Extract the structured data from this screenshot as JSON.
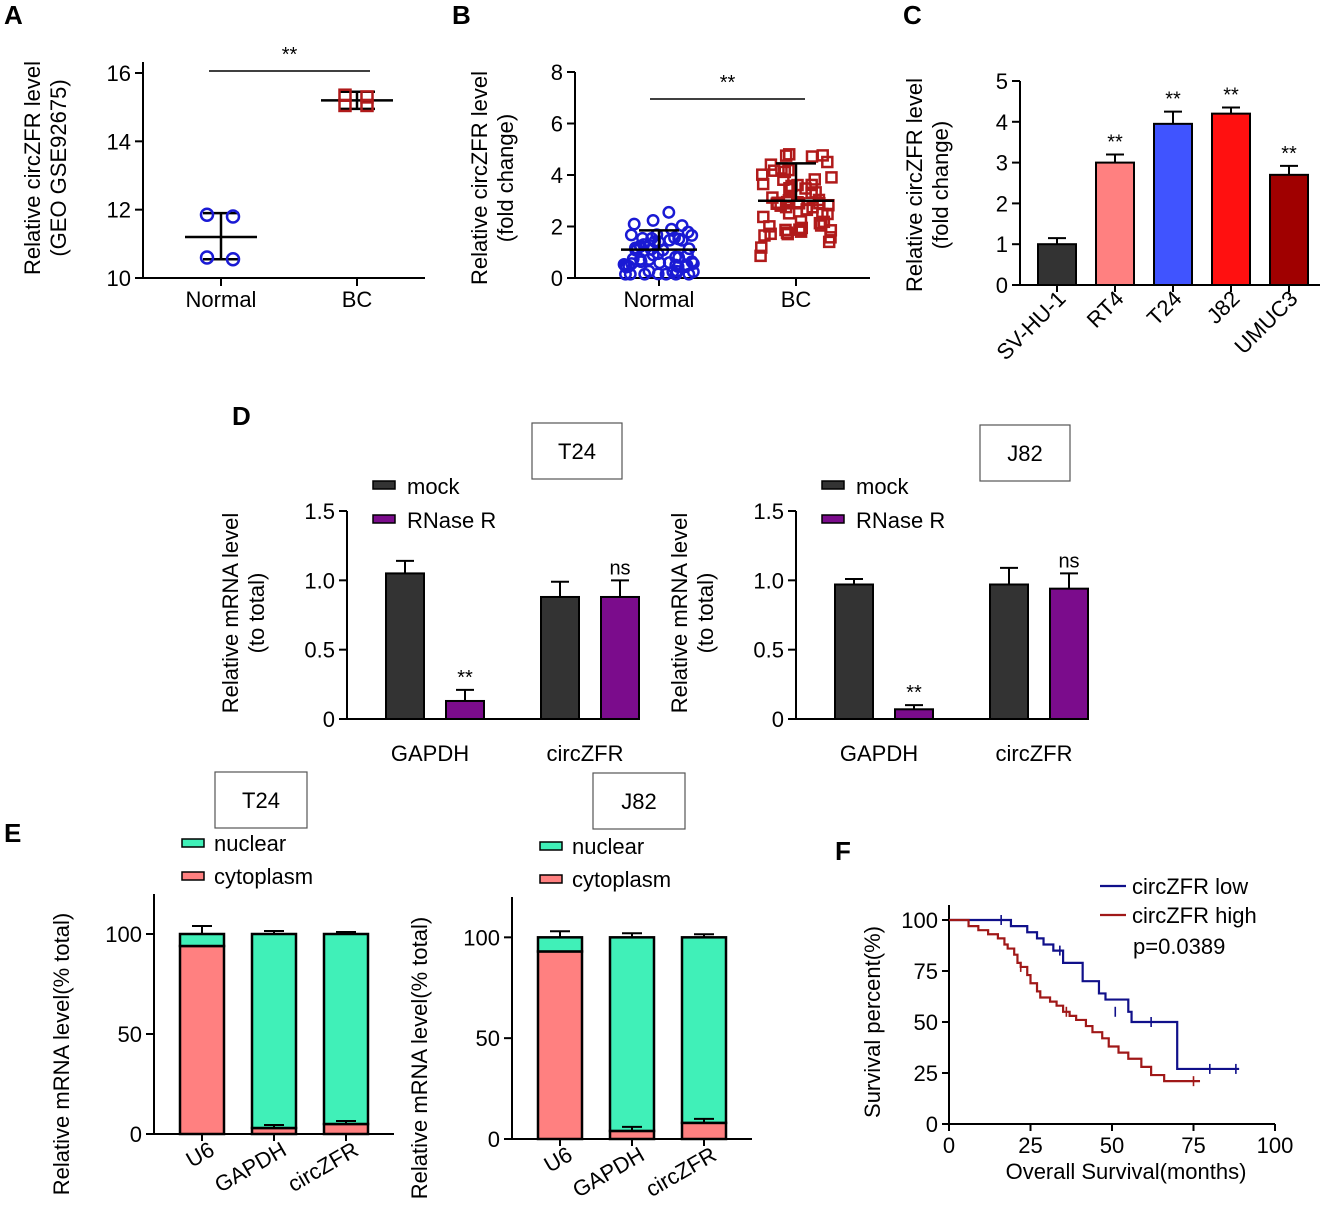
{
  "panels": {
    "A": "A",
    "B": "B",
    "C": "C",
    "D": "D",
    "E": "E",
    "F": "F"
  },
  "colors": {
    "blue": "#1a1ad4",
    "red": "#b01a1a",
    "dark": "#333333",
    "purple": "#7b0c8c",
    "pink": "#ff8080",
    "blueBar": "#4054ff",
    "redBar": "#ff1010",
    "darkRed": "#a00000",
    "salmon": "#ff8080",
    "mint": "#40f0b8",
    "navy": "#10108a",
    "maroon": "#a01818"
  },
  "chart_data": [
    {
      "id": "A",
      "type": "scatter",
      "ylabel_lines": [
        "Relative circZFR level",
        "(GEO GSE92675)"
      ],
      "categories": [
        "Normal",
        "BC"
      ],
      "ylim": [
        10,
        16
      ],
      "yticks": [
        10,
        12,
        14,
        16
      ],
      "groups": [
        {
          "name": "Normal",
          "mean": 11.2,
          "sd_low": 10.55,
          "sd_high": 11.9,
          "points": [
            11.85,
            11.8,
            10.6,
            10.55
          ]
        },
        {
          "name": "BC",
          "mean": 15.2,
          "sd_low": 14.95,
          "sd_high": 15.45,
          "points": [
            15.35,
            15.3,
            15.05,
            15.05
          ]
        }
      ],
      "significance": "**"
    },
    {
      "id": "B",
      "type": "scatter",
      "ylabel_lines": [
        "Relative circZFR level",
        "(fold change)"
      ],
      "categories": [
        "Normal",
        "BC"
      ],
      "ylim": [
        0,
        8
      ],
      "yticks": [
        0,
        2,
        4,
        6,
        8
      ],
      "groups": [
        {
          "name": "Normal",
          "mean": 1.1,
          "sd_high": 1.85
        },
        {
          "name": "BC",
          "mean": 3.0,
          "sd_high": 4.45
        }
      ],
      "significance": "**"
    },
    {
      "id": "C",
      "type": "bar",
      "ylabel_lines": [
        "Relative circZFR level",
        "(fold change)"
      ],
      "categories": [
        "SV-HU-1",
        "RT4",
        "T24",
        "J82",
        "UMUC3"
      ],
      "values": [
        1.0,
        3.0,
        3.95,
        4.2,
        2.7
      ],
      "errors": [
        0.15,
        0.2,
        0.3,
        0.15,
        0.22
      ],
      "significance": [
        "",
        "**",
        "**",
        "**",
        "**"
      ],
      "ylim": [
        0,
        5
      ],
      "yticks": [
        0,
        1,
        2,
        3,
        4,
        5
      ]
    },
    {
      "id": "D1",
      "type": "bar",
      "title": "T24",
      "ylabel_lines": [
        "Relative mRNA level",
        "(to total)"
      ],
      "categories": [
        "GAPDH",
        "circZFR"
      ],
      "series": [
        {
          "name": "mock",
          "values": [
            1.05,
            0.88
          ],
          "errors": [
            0.09,
            0.11
          ]
        },
        {
          "name": "RNase R",
          "values": [
            0.13,
            0.88
          ],
          "errors": [
            0.08,
            0.12
          ]
        }
      ],
      "significance": [
        "**",
        "ns"
      ],
      "ylim": [
        0,
        1.5
      ],
      "yticks": [
        "0",
        "0.5",
        "1.0",
        "1.5"
      ]
    },
    {
      "id": "D2",
      "type": "bar",
      "title": "J82",
      "ylabel_lines": [
        "Relative mRNA level",
        "(to total)"
      ],
      "categories": [
        "GAPDH",
        "circZFR"
      ],
      "series": [
        {
          "name": "mock",
          "values": [
            0.97,
            0.97
          ],
          "errors": [
            0.04,
            0.12
          ]
        },
        {
          "name": "RNase R",
          "values": [
            0.07,
            0.94
          ],
          "errors": [
            0.03,
            0.11
          ]
        }
      ],
      "significance": [
        "**",
        "ns"
      ],
      "ylim": [
        0,
        1.5
      ],
      "yticks": [
        "0",
        "0.5",
        "1.0",
        "1.5"
      ]
    },
    {
      "id": "E1",
      "type": "bar",
      "stacked": true,
      "title": "T24",
      "ylabel_lines": [
        "Relative mRNA level(% total)"
      ],
      "categories": [
        "U6",
        "GAPDH",
        "circZFR"
      ],
      "series": [
        {
          "name": "nuclear",
          "values": [
            6,
            97,
            95
          ]
        },
        {
          "name": "cytoplasm",
          "values": [
            94,
            3,
            5
          ]
        }
      ],
      "errors_top": [
        4,
        1.5,
        1
      ],
      "errors_cyto": [
        0,
        1.5,
        1.5
      ],
      "ylim": [
        0,
        120
      ],
      "yticks": [
        0,
        50,
        100
      ]
    },
    {
      "id": "E2",
      "type": "bar",
      "stacked": true,
      "title": "J82",
      "ylabel_lines": [
        "Relative mRNA level(% total)"
      ],
      "categories": [
        "U6",
        "GAPDH",
        "circZFR"
      ],
      "series": [
        {
          "name": "nuclear",
          "values": [
            7,
            96,
            92
          ]
        },
        {
          "name": "cytoplasm",
          "values": [
            93,
            4,
            8
          ]
        }
      ],
      "errors_top": [
        3,
        2,
        1.5
      ],
      "errors_cyto": [
        0,
        2,
        2
      ],
      "ylim": [
        0,
        120
      ],
      "yticks": [
        0,
        50,
        100
      ]
    },
    {
      "id": "F",
      "type": "line",
      "xlabel": "Overall Survival(months)",
      "ylabel": "Survival percent(%)",
      "xlim": [
        0,
        100
      ],
      "ylim": [
        0,
        100
      ],
      "xticks": [
        0,
        25,
        50,
        75,
        100
      ],
      "yticks": [
        0,
        25,
        50,
        75,
        100
      ],
      "annotation": "p=0.0389",
      "series": [
        {
          "name": "circZFR low",
          "x": [
            0,
            16,
            19,
            21,
            24,
            27,
            29,
            32,
            35,
            41,
            46,
            48,
            55,
            56,
            70,
            89
          ],
          "y": [
            100,
            100,
            97,
            97,
            94,
            91,
            88,
            85,
            79,
            70,
            64,
            61,
            55,
            50,
            27,
            27
          ]
        },
        {
          "name": "circZFR high",
          "x": [
            0,
            6,
            9,
            12,
            15,
            17,
            18,
            20,
            21,
            22,
            24,
            25,
            27,
            28,
            31,
            33,
            35,
            37,
            39,
            42,
            44,
            47,
            49,
            52,
            55,
            59,
            62,
            66,
            69,
            73,
            77
          ],
          "y": [
            100,
            97,
            95,
            93,
            91,
            88,
            86,
            83,
            79,
            77,
            73,
            69,
            65,
            62,
            60,
            58,
            55,
            53,
            51,
            48,
            45,
            42,
            38,
            35,
            32,
            28,
            24,
            21,
            21,
            21,
            21
          ]
        }
      ]
    }
  ]
}
